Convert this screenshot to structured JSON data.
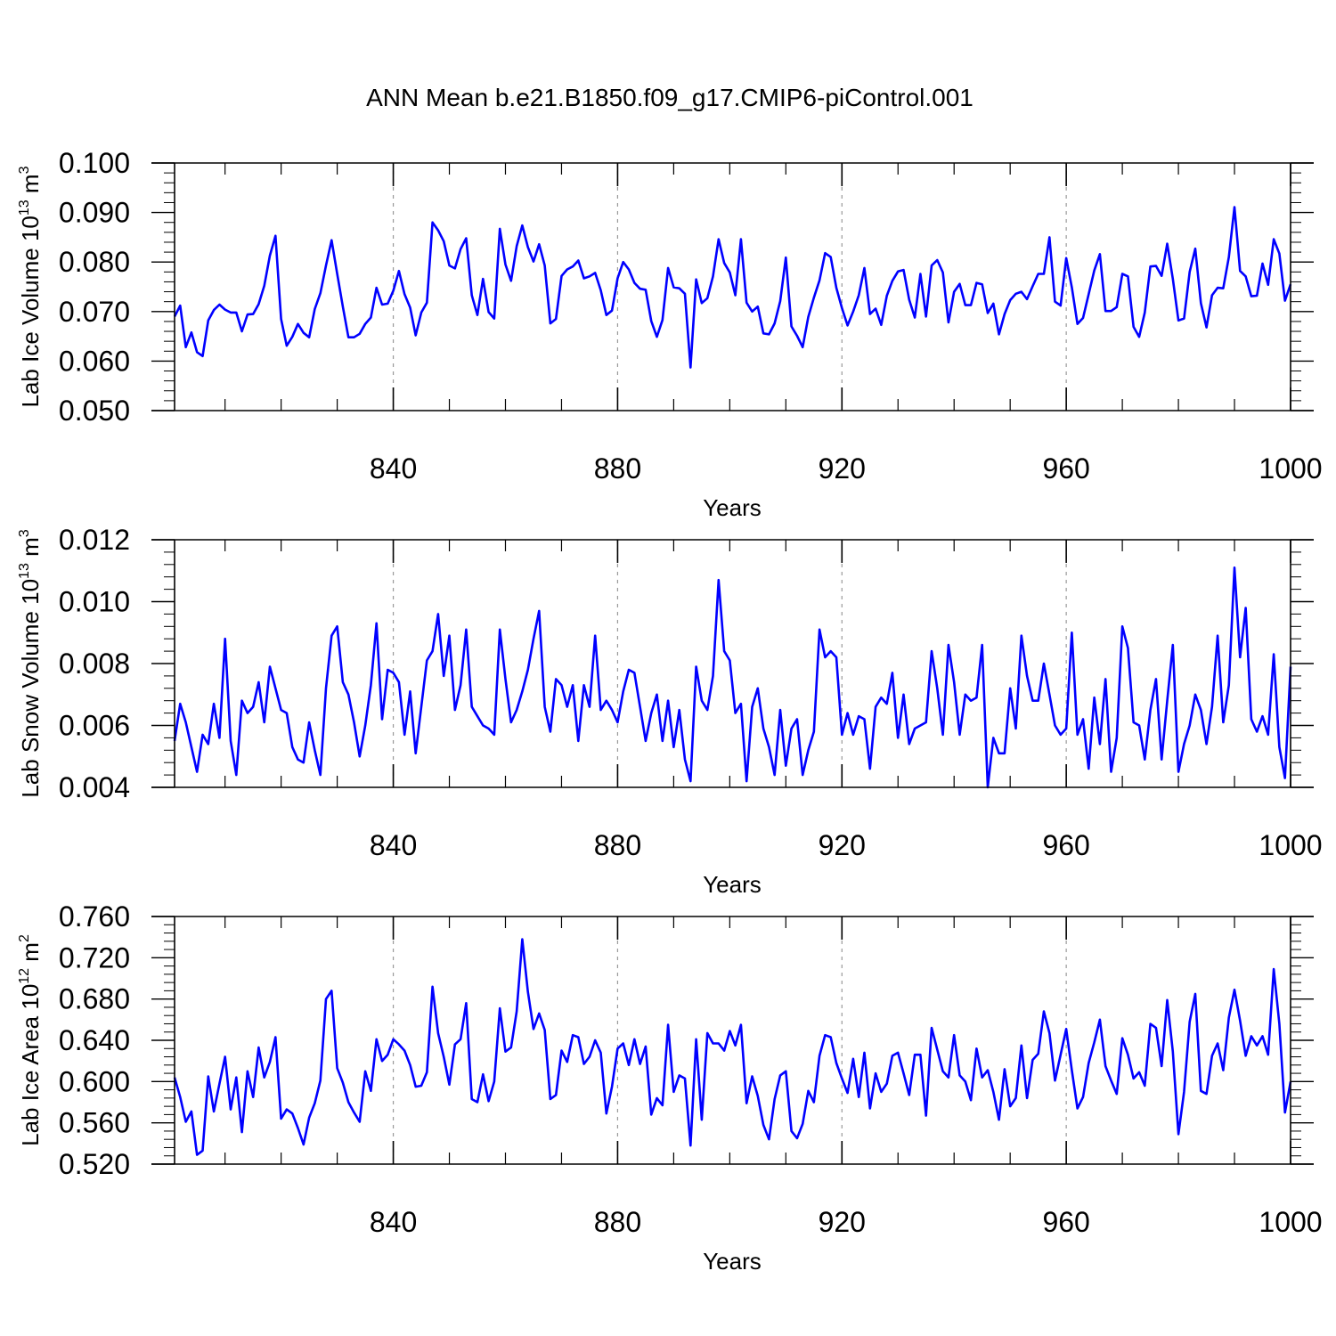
{
  "title": "ANN Mean b.e21.B1850.f09_g17.CMIP6-piControl.001",
  "colors": {
    "line": "#0000ff",
    "axis": "#000000",
    "grid": "#999999"
  },
  "chart_data": [
    {
      "type": "line",
      "ylabel": "Lab Ice Volume 10",
      "ylabel_sup": "13",
      "ylabel_unit": "m",
      "ylabel_unit_sup": "3",
      "xlabel": "Years",
      "xlim": [
        801,
        1000
      ],
      "ylim": [
        0.05,
        0.1
      ],
      "xticks": [
        840,
        880,
        920,
        960,
        1000
      ],
      "yticks": [
        0.05,
        0.06,
        0.07,
        0.08,
        0.09,
        0.1
      ],
      "ytick_labels": [
        "0.050",
        "0.060",
        "0.070",
        "0.080",
        "0.090",
        "0.100"
      ],
      "grid": "dashed vertical at major x ticks",
      "series": [
        {
          "name": "Lab Ice Volume",
          "x_start": 801,
          "values": [
            0.069,
            0.0712,
            0.0628,
            0.0658,
            0.0618,
            0.061,
            0.0682,
            0.0703,
            0.0714,
            0.0704,
            0.0698,
            0.0698,
            0.066,
            0.0694,
            0.0695,
            0.0715,
            0.0752,
            0.0813,
            0.0853,
            0.0685,
            0.0631,
            0.0649,
            0.0675,
            0.0657,
            0.0648,
            0.0705,
            0.0737,
            0.0793,
            0.0844,
            0.0776,
            0.071,
            0.0648,
            0.0648,
            0.0655,
            0.0675,
            0.0688,
            0.0748,
            0.0714,
            0.0716,
            0.0742,
            0.0782,
            0.0735,
            0.0708,
            0.0652,
            0.0698,
            0.0718,
            0.088,
            0.0864,
            0.0842,
            0.0793,
            0.0787,
            0.0826,
            0.0848,
            0.0733,
            0.0693,
            0.0766,
            0.0699,
            0.0686,
            0.0867,
            0.0795,
            0.0762,
            0.0832,
            0.0874,
            0.083,
            0.0801,
            0.0836,
            0.0793,
            0.0676,
            0.0685,
            0.0772,
            0.0785,
            0.0791,
            0.0803,
            0.0767,
            0.0771,
            0.0778,
            0.0743,
            0.0693,
            0.0702,
            0.0767,
            0.08,
            0.0785,
            0.0758,
            0.0746,
            0.0744,
            0.0681,
            0.0649,
            0.0683,
            0.0788,
            0.0749,
            0.0747,
            0.0736,
            0.0587,
            0.0765,
            0.0717,
            0.0727,
            0.0771,
            0.0846,
            0.0798,
            0.0779,
            0.0733,
            0.0846,
            0.0718,
            0.07,
            0.071,
            0.0656,
            0.0654,
            0.0676,
            0.0721,
            0.0809,
            0.067,
            0.0651,
            0.0628,
            0.0689,
            0.0728,
            0.0763,
            0.0818,
            0.081,
            0.0748,
            0.0707,
            0.0672,
            0.07,
            0.0733,
            0.0788,
            0.0695,
            0.0706,
            0.0673,
            0.0732,
            0.0762,
            0.0781,
            0.0784,
            0.0724,
            0.0688,
            0.0776,
            0.069,
            0.0793,
            0.0804,
            0.0779,
            0.0678,
            0.074,
            0.0756,
            0.0713,
            0.0713,
            0.0758,
            0.0755,
            0.0697,
            0.0716,
            0.0654,
            0.0695,
            0.0723,
            0.0736,
            0.074,
            0.0725,
            0.0751,
            0.0776,
            0.0776,
            0.085,
            0.072,
            0.0712,
            0.0808,
            0.0749,
            0.0675,
            0.0687,
            0.0735,
            0.0783,
            0.0816,
            0.0701,
            0.0701,
            0.0709,
            0.0776,
            0.0771,
            0.0669,
            0.0649,
            0.0698,
            0.0791,
            0.0792,
            0.0772,
            0.0837,
            0.0766,
            0.0682,
            0.0686,
            0.078,
            0.0827,
            0.0717,
            0.0668,
            0.0733,
            0.0748,
            0.0747,
            0.081,
            0.0911,
            0.0782,
            0.0771,
            0.0731,
            0.0732,
            0.0797,
            0.0754,
            0.0846,
            0.0817,
            0.0722,
            0.0755
          ]
        }
      ]
    },
    {
      "type": "line",
      "ylabel": "Lab Snow Volume 10",
      "ylabel_sup": "13",
      "ylabel_unit": "m",
      "ylabel_unit_sup": "3",
      "xlabel": "Years",
      "xlim": [
        801,
        1000
      ],
      "ylim": [
        0.004,
        0.012
      ],
      "xticks": [
        840,
        880,
        920,
        960,
        1000
      ],
      "yticks": [
        0.004,
        0.006,
        0.008,
        0.01,
        0.012
      ],
      "ytick_labels": [
        "0.004",
        "0.006",
        "0.008",
        "0.010",
        "0.012"
      ],
      "grid": "dashed vertical at major x ticks",
      "series": [
        {
          "name": "Lab Snow Volume",
          "x_start": 801,
          "values": [
            0.0055,
            0.0067,
            0.0061,
            0.0053,
            0.0045,
            0.0057,
            0.0054,
            0.0067,
            0.0056,
            0.0088,
            0.0055,
            0.0044,
            0.0068,
            0.0064,
            0.0066,
            0.0074,
            0.0061,
            0.0079,
            0.0072,
            0.0065,
            0.0064,
            0.0053,
            0.0049,
            0.0048,
            0.0061,
            0.0052,
            0.0044,
            0.0072,
            0.0089,
            0.0092,
            0.0074,
            0.007,
            0.0061,
            0.005,
            0.006,
            0.0073,
            0.0093,
            0.0062,
            0.0078,
            0.0077,
            0.0074,
            0.0057,
            0.0071,
            0.0051,
            0.0066,
            0.0081,
            0.0084,
            0.0096,
            0.0076,
            0.0089,
            0.0065,
            0.0073,
            0.0091,
            0.0066,
            0.0063,
            0.006,
            0.0059,
            0.0057,
            0.0091,
            0.0075,
            0.0061,
            0.0065,
            0.0071,
            0.0078,
            0.0088,
            0.0097,
            0.0066,
            0.0058,
            0.0075,
            0.0073,
            0.0066,
            0.0073,
            0.0055,
            0.0073,
            0.0066,
            0.0089,
            0.0065,
            0.0068,
            0.0065,
            0.0061,
            0.0071,
            0.0078,
            0.0077,
            0.0066,
            0.0055,
            0.0064,
            0.007,
            0.0055,
            0.0068,
            0.0053,
            0.0065,
            0.0049,
            0.0042,
            0.0079,
            0.0068,
            0.0065,
            0.0076,
            0.0107,
            0.0084,
            0.0081,
            0.0064,
            0.0067,
            0.0042,
            0.0066,
            0.0072,
            0.0059,
            0.0053,
            0.0044,
            0.0065,
            0.0047,
            0.0059,
            0.0062,
            0.0044,
            0.0052,
            0.0058,
            0.0091,
            0.0082,
            0.0084,
            0.0082,
            0.0057,
            0.0064,
            0.0057,
            0.0063,
            0.0062,
            0.0046,
            0.0066,
            0.0069,
            0.0067,
            0.0077,
            0.0056,
            0.007,
            0.0054,
            0.0059,
            0.006,
            0.0061,
            0.0084,
            0.0072,
            0.0057,
            0.0086,
            0.0074,
            0.0057,
            0.007,
            0.0068,
            0.0069,
            0.0086,
            0.004,
            0.0056,
            0.0051,
            0.0051,
            0.0072,
            0.0059,
            0.0089,
            0.0076,
            0.0068,
            0.0068,
            0.008,
            0.007,
            0.006,
            0.0057,
            0.0059,
            0.009,
            0.0057,
            0.0062,
            0.0046,
            0.0069,
            0.0054,
            0.0075,
            0.0045,
            0.0056,
            0.0092,
            0.0085,
            0.0061,
            0.006,
            0.0049,
            0.0065,
            0.0075,
            0.0049,
            0.0068,
            0.0086,
            0.0045,
            0.0054,
            0.006,
            0.007,
            0.0065,
            0.0054,
            0.0066,
            0.0089,
            0.0061,
            0.0073,
            0.0111,
            0.0082,
            0.0098,
            0.0062,
            0.0058,
            0.0063,
            0.0057,
            0.0083,
            0.0053,
            0.0043,
            0.0079
          ]
        }
      ]
    },
    {
      "type": "line",
      "ylabel": "Lab Ice Area 10",
      "ylabel_sup": "12",
      "ylabel_unit": "m",
      "ylabel_unit_sup": "2",
      "xlabel": "Years",
      "xlim": [
        801,
        1000
      ],
      "ylim": [
        0.52,
        0.76
      ],
      "xticks": [
        840,
        880,
        920,
        960,
        1000
      ],
      "yticks": [
        0.52,
        0.56,
        0.6,
        0.64,
        0.68,
        0.72,
        0.76
      ],
      "ytick_labels": [
        "0.520",
        "0.560",
        "0.600",
        "0.640",
        "0.680",
        "0.720",
        "0.760"
      ],
      "grid": "dashed vertical at major x ticks",
      "series": [
        {
          "name": "Lab Ice Area",
          "x_start": 801,
          "values": [
            0.604,
            0.585,
            0.561,
            0.571,
            0.529,
            0.533,
            0.605,
            0.571,
            0.598,
            0.624,
            0.573,
            0.604,
            0.551,
            0.61,
            0.585,
            0.633,
            0.604,
            0.619,
            0.643,
            0.564,
            0.573,
            0.569,
            0.555,
            0.539,
            0.565,
            0.579,
            0.601,
            0.68,
            0.688,
            0.613,
            0.599,
            0.58,
            0.57,
            0.561,
            0.61,
            0.591,
            0.641,
            0.62,
            0.626,
            0.641,
            0.636,
            0.63,
            0.616,
            0.595,
            0.596,
            0.609,
            0.692,
            0.647,
            0.624,
            0.597,
            0.636,
            0.641,
            0.676,
            0.583,
            0.58,
            0.607,
            0.581,
            0.6,
            0.671,
            0.629,
            0.633,
            0.668,
            0.738,
            0.687,
            0.651,
            0.666,
            0.65,
            0.583,
            0.587,
            0.63,
            0.619,
            0.645,
            0.643,
            0.617,
            0.624,
            0.64,
            0.628,
            0.569,
            0.595,
            0.632,
            0.637,
            0.616,
            0.641,
            0.617,
            0.634,
            0.568,
            0.584,
            0.577,
            0.655,
            0.59,
            0.606,
            0.603,
            0.538,
            0.641,
            0.563,
            0.647,
            0.637,
            0.637,
            0.63,
            0.649,
            0.635,
            0.655,
            0.579,
            0.605,
            0.586,
            0.558,
            0.544,
            0.583,
            0.606,
            0.61,
            0.552,
            0.545,
            0.559,
            0.591,
            0.58,
            0.625,
            0.645,
            0.643,
            0.618,
            0.603,
            0.589,
            0.622,
            0.585,
            0.628,
            0.574,
            0.608,
            0.59,
            0.598,
            0.625,
            0.628,
            0.608,
            0.587,
            0.626,
            0.626,
            0.567,
            0.652,
            0.631,
            0.61,
            0.604,
            0.645,
            0.606,
            0.6,
            0.582,
            0.632,
            0.604,
            0.611,
            0.59,
            0.563,
            0.612,
            0.576,
            0.584,
            0.635,
            0.584,
            0.621,
            0.627,
            0.668,
            0.647,
            0.601,
            0.626,
            0.651,
            0.611,
            0.574,
            0.585,
            0.618,
            0.638,
            0.66,
            0.615,
            0.601,
            0.588,
            0.642,
            0.626,
            0.603,
            0.609,
            0.596,
            0.656,
            0.652,
            0.615,
            0.679,
            0.629,
            0.549,
            0.59,
            0.658,
            0.685,
            0.591,
            0.588,
            0.625,
            0.637,
            0.611,
            0.662,
            0.689,
            0.659,
            0.625,
            0.644,
            0.635,
            0.644,
            0.626,
            0.709,
            0.656,
            0.57,
            0.6
          ]
        }
      ]
    }
  ]
}
